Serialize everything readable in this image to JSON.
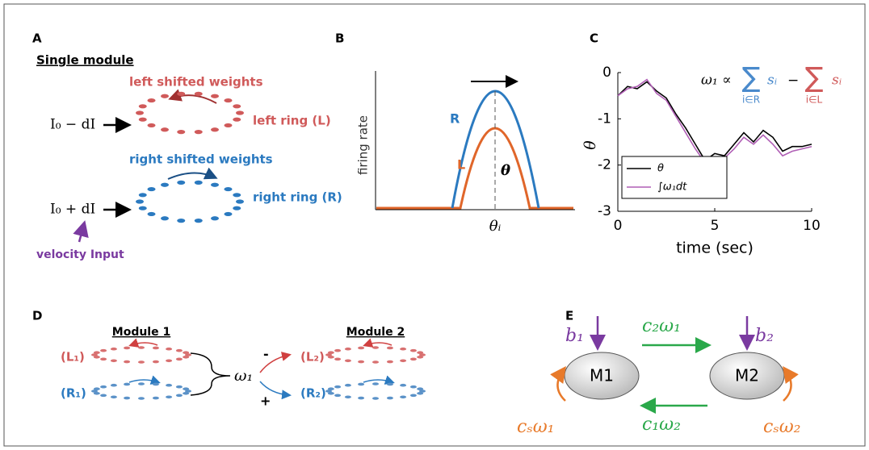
{
  "panels": {
    "A": {
      "label": "A",
      "heading": "Single module",
      "top_weights": "left shifted weights",
      "top_ring": "left ring (L)",
      "top_input": "I₀ − dI",
      "bottom_weights": "right shifted weights",
      "bottom_ring": "right ring (R)",
      "bottom_input": "I₀ + dI",
      "velocity": "velocity Input"
    },
    "B": {
      "label": "B",
      "ylabel": "firing rate",
      "xlabel": "θᵢ",
      "curve_r": "R",
      "curve_l": "L",
      "theta": "θ"
    },
    "D": {
      "label": "D",
      "module1": "Module 1",
      "module2": "Module 2",
      "l1": "(L₁)",
      "r1": "(R₁)",
      "l2": "(L₂)",
      "r2": "(R₂)",
      "omega": "ω₁",
      "minus": "-",
      "plus": "+"
    },
    "E": {
      "label": "E",
      "m1": "M1",
      "m2": "M2",
      "b1": "b₁",
      "b2": "b₂",
      "c2w1": "c₂ω₁",
      "c1w2": "c₁ω₂",
      "csw1": "cₛω₁",
      "csw2": "cₛω₂"
    }
  },
  "chart_data": {
    "type": "line",
    "label": "C",
    "xlabel": "time (sec)",
    "ylabel": "θ",
    "formula": {
      "lhs": "ω₁ ∝",
      "sum1": "∑",
      "sub1": "i∈R",
      "s1": "sᵢ",
      "minus": "−",
      "sum2": "∑",
      "sub2": "i∈L",
      "s2": "sᵢ"
    },
    "x": [
      0,
      0.5,
      1,
      1.5,
      2,
      2.5,
      3,
      3.5,
      4,
      4.5,
      5,
      5.5,
      6,
      6.5,
      7,
      7.5,
      8,
      8.5,
      9,
      9.5,
      10
    ],
    "series": [
      {
        "name": "θ",
        "color": "#000000",
        "values": [
          -0.5,
          -0.3,
          -0.35,
          -0.2,
          -0.4,
          -0.55,
          -0.9,
          -1.2,
          -1.55,
          -1.9,
          -1.75,
          -1.8,
          -1.55,
          -1.3,
          -1.5,
          -1.25,
          -1.4,
          -1.7,
          -1.6,
          -1.6,
          -1.55
        ]
      },
      {
        "name": "∫ω₁dt",
        "color": "#b05fb5",
        "values": [
          -0.5,
          -0.35,
          -0.3,
          -0.15,
          -0.45,
          -0.6,
          -0.95,
          -1.3,
          -1.65,
          -1.95,
          -1.9,
          -1.85,
          -1.65,
          -1.4,
          -1.55,
          -1.35,
          -1.55,
          -1.8,
          -1.7,
          -1.65,
          -1.6
        ]
      }
    ],
    "xlim": [
      0,
      10
    ],
    "ylim": [
      -3,
      0
    ],
    "xticks": [
      0,
      5,
      10
    ],
    "yticks": [
      -3,
      -2,
      -1,
      0
    ],
    "legend": "lower left"
  }
}
